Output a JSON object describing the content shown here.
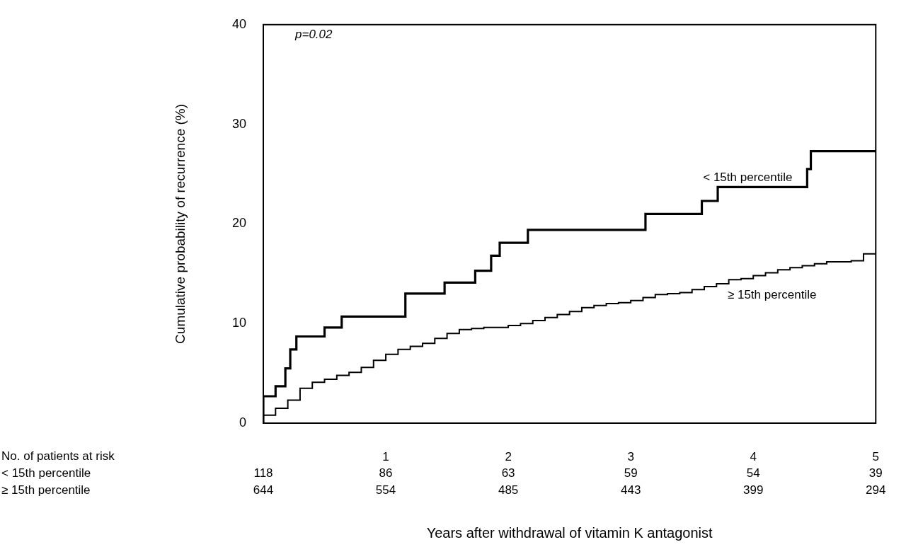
{
  "chart_data": {
    "type": "step",
    "x_label": "Years after withdrawal of vitamin K antagonist",
    "y_label": "Cumulative probability of recurrence (%)",
    "xlim": [
      0,
      5
    ],
    "xticks": [
      1,
      2,
      3,
      4,
      5
    ],
    "ylim": [
      0,
      40
    ],
    "yticks": [
      0,
      10,
      20,
      30,
      40
    ],
    "grid": false,
    "annotations": [
      {
        "text": "p=0.02",
        "x": 0.26,
        "y": 39
      }
    ],
    "series": [
      {
        "name": "< 15th percentile",
        "color": "#000000",
        "label_x": 3.59,
        "label_y": 24.6,
        "x": [
          0,
          0.1,
          0.18,
          0.22,
          0.27,
          0.5,
          0.64,
          1.16,
          1.48,
          1.73,
          1.86,
          1.93,
          2.16,
          3.12,
          3.58,
          3.71,
          4.44,
          4.47,
          4.73,
          5
        ],
        "values": [
          0,
          2.7,
          3.7,
          5.5,
          7.4,
          8.7,
          9.6,
          10.7,
          13,
          14.1,
          15.3,
          16.8,
          18.1,
          19.4,
          21,
          22.3,
          23.7,
          25.5,
          27.3,
          27.3
        ]
      },
      {
        "name": "≥ 15th percentile",
        "color": "#000000",
        "label_x": 3.79,
        "label_y": 12.8,
        "x": [
          0,
          0.1,
          0.2,
          0.3,
          0.4,
          0.5,
          0.6,
          0.7,
          0.8,
          0.9,
          1.0,
          1.1,
          1.2,
          1.3,
          1.4,
          1.5,
          1.6,
          1.7,
          1.8,
          1.9,
          2.0,
          2.1,
          2.2,
          2.3,
          2.4,
          2.5,
          2.6,
          2.7,
          2.8,
          2.9,
          3.0,
          3.1,
          3.2,
          3.3,
          3.4,
          3.5,
          3.6,
          3.7,
          3.8,
          3.9,
          4.0,
          4.1,
          4.2,
          4.3,
          4.4,
          4.5,
          4.6,
          4.7,
          4.8,
          4.9,
          5.0
        ],
        "values": [
          0,
          0.8,
          1.5,
          2.3,
          3.5,
          4.1,
          4.4,
          4.8,
          5.1,
          5.6,
          6.3,
          6.9,
          7.4,
          7.7,
          8.0,
          8.5,
          9.0,
          9.4,
          9.5,
          9.6,
          9.6,
          9.8,
          10.0,
          10.3,
          10.6,
          10.9,
          11.2,
          11.6,
          11.8,
          12.0,
          12.1,
          12.3,
          12.6,
          12.9,
          13.0,
          13.1,
          13.4,
          13.7,
          14.0,
          14.4,
          14.5,
          14.8,
          15.1,
          15.4,
          15.6,
          15.8,
          16.0,
          16.2,
          16.2,
          16.3,
          17.0
        ]
      }
    ],
    "risk_table": {
      "title": "No. of patients at risk",
      "x": [
        0,
        1,
        2,
        3,
        4,
        5
      ],
      "rows": [
        {
          "name": "< 15th percentile",
          "values": [
            118,
            86,
            63,
            59,
            54,
            39
          ]
        },
        {
          "name": "≥ 15th percentile",
          "values": [
            644,
            554,
            485,
            443,
            399,
            294
          ]
        }
      ]
    }
  }
}
